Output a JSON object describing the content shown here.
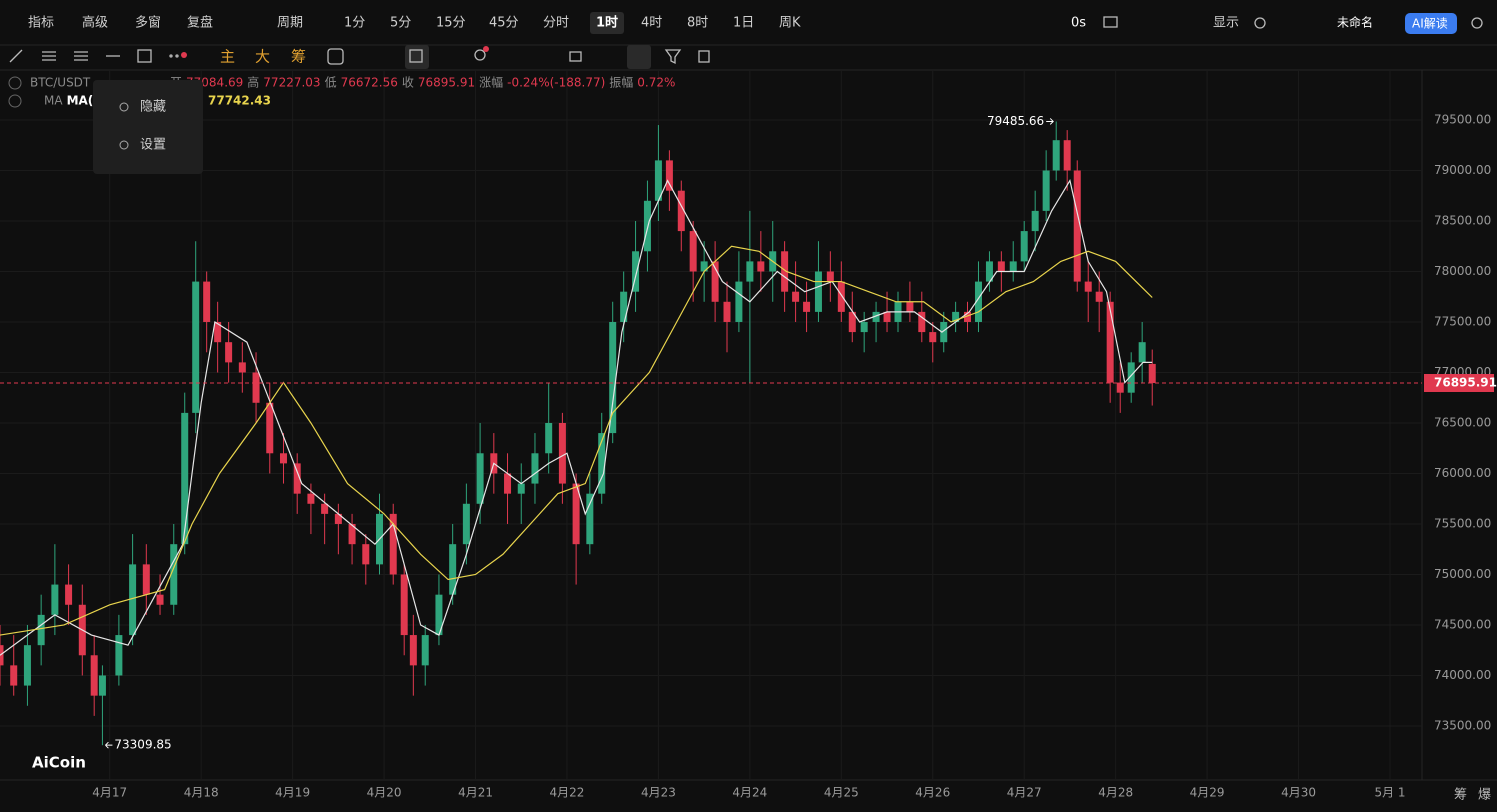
{
  "toolbar": {
    "left": [
      "指标",
      "高级",
      "多窗",
      "复盘"
    ],
    "period": "周期",
    "intervals": [
      "1分",
      "5分",
      "15分",
      "45分",
      "分时",
      "1时",
      "4时",
      "8时",
      "1日",
      "周K"
    ],
    "active_interval": 5,
    "timer": "0s",
    "display": "显示",
    "layout_name": "未命名",
    "ai": "AI解读"
  },
  "tools": {
    "main": "主",
    "big": "大",
    "chip": "筹"
  },
  "info": {
    "symbol": "BTC/USDT",
    "open": "开",
    "high": "高",
    "low": "低",
    "close": "收",
    "change_label": "涨幅",
    "change": "-0.24%(-188.77)",
    "amplitude_label": "振幅",
    "amplitude": "0.72%",
    "ma_label": "MA",
    "ma_bold": "MA("
  },
  "menu": [
    "隐藏",
    "设置"
  ],
  "logo": "AiCoin",
  "corner": [
    "筹",
    "爆"
  ],
  "chart_data": {
    "type": "candlestick",
    "xlim": [
      -1.2,
      14.35
    ],
    "ylim": [
      72965,
      79995
    ],
    "xticks": [
      {
        "value": 0,
        "label": "4月17"
      },
      {
        "value": 1,
        "label": "4月18"
      },
      {
        "value": 2,
        "label": "4月19"
      },
      {
        "value": 3,
        "label": "4月20"
      },
      {
        "value": 4,
        "label": "4月21"
      },
      {
        "value": 5,
        "label": "4月22"
      },
      {
        "value": 6,
        "label": "4月23"
      },
      {
        "value": 7,
        "label": "4月24"
      },
      {
        "value": 8,
        "label": "4月25"
      },
      {
        "value": 9,
        "label": "4月26"
      },
      {
        "value": 10,
        "label": "4月27"
      },
      {
        "value": 11,
        "label": "4月28"
      },
      {
        "value": 12,
        "label": "4月29"
      },
      {
        "value": 13,
        "label": "4月30"
      },
      {
        "value": 14,
        "label": "5月 1"
      }
    ],
    "yticks": [
      {
        "value": 73500,
        "label": "73500.00"
      },
      {
        "value": 74000,
        "label": "74000.00"
      },
      {
        "value": 74500,
        "label": "74500.00"
      },
      {
        "value": 75000,
        "label": "75000.00"
      },
      {
        "value": 75500,
        "label": "75500.00"
      },
      {
        "value": 76000,
        "label": "76000.00"
      },
      {
        "value": 76500,
        "label": "76500.00"
      },
      {
        "value": 77000,
        "label": "77000.00"
      },
      {
        "value": 77500,
        "label": "77500.00"
      },
      {
        "value": 78000,
        "label": "78000.00"
      },
      {
        "value": 78500,
        "label": "78500.00"
      },
      {
        "value": 79000,
        "label": "79000.00"
      },
      {
        "value": 79500,
        "label": "79500.00"
      }
    ],
    "grid": true,
    "up_color": "#2fa57c",
    "down_color": "#e0394f",
    "candles": [
      [
        -1.2,
        74300,
        74500,
        73900,
        74100
      ],
      [
        -1.05,
        74100,
        74400,
        73800,
        73900
      ],
      [
        -0.9,
        73900,
        74500,
        73700,
        74300
      ],
      [
        -0.75,
        74300,
        74800,
        74100,
        74600
      ],
      [
        -0.6,
        74600,
        75300,
        74400,
        74900
      ],
      [
        -0.45,
        74900,
        75100,
        74500,
        74700
      ],
      [
        -0.3,
        74700,
        74900,
        74000,
        74200
      ],
      [
        -0.17,
        74200,
        74400,
        73600,
        73800
      ],
      [
        -0.08,
        73800,
        74100,
        73309.85,
        74000
      ],
      [
        0.1,
        74000,
        74600,
        73900,
        74400
      ],
      [
        0.25,
        74400,
        75400,
        74300,
        75100
      ],
      [
        0.4,
        75100,
        75300,
        74600,
        74800
      ],
      [
        0.55,
        74800,
        75000,
        74600,
        74700
      ],
      [
        0.7,
        74700,
        75500,
        74600,
        75300
      ],
      [
        0.82,
        75300,
        76800,
        75200,
        76600
      ],
      [
        0.94,
        76600,
        78300,
        76400,
        77900
      ],
      [
        1.06,
        77900,
        78000,
        77200,
        77500
      ],
      [
        1.18,
        77500,
        77700,
        77000,
        77300
      ],
      [
        1.3,
        77300,
        77500,
        76900,
        77100
      ],
      [
        1.45,
        77100,
        77300,
        76800,
        77000
      ],
      [
        1.6,
        77000,
        77200,
        76500,
        76700
      ],
      [
        1.75,
        76700,
        76900,
        76000,
        76200
      ],
      [
        1.9,
        76200,
        76400,
        75900,
        76100
      ],
      [
        2.05,
        76100,
        76200,
        75600,
        75800
      ],
      [
        2.2,
        75800,
        75900,
        75400,
        75700
      ],
      [
        2.35,
        75700,
        75800,
        75300,
        75600
      ],
      [
        2.5,
        75600,
        75700,
        75200,
        75500
      ],
      [
        2.65,
        75500,
        75600,
        75100,
        75300
      ],
      [
        2.8,
        75300,
        75400,
        74900,
        75100
      ],
      [
        2.95,
        75100,
        75800,
        75000,
        75600
      ],
      [
        3.1,
        75600,
        75700,
        74900,
        75000
      ],
      [
        3.22,
        75000,
        75100,
        74200,
        74400
      ],
      [
        3.32,
        74400,
        74600,
        73800,
        74100
      ],
      [
        3.45,
        74100,
        74500,
        73900,
        74400
      ],
      [
        3.6,
        74400,
        75000,
        74300,
        74800
      ],
      [
        3.75,
        74800,
        75500,
        74700,
        75300
      ],
      [
        3.9,
        75300,
        75900,
        75100,
        75700
      ],
      [
        4.05,
        75700,
        76500,
        75500,
        76200
      ],
      [
        4.2,
        76200,
        76400,
        75800,
        76000
      ],
      [
        4.35,
        76000,
        76200,
        75500,
        75800
      ],
      [
        4.5,
        75800,
        76100,
        75500,
        75900
      ],
      [
        4.65,
        75900,
        76400,
        75700,
        76200
      ],
      [
        4.8,
        76200,
        76900,
        76000,
        76500
      ],
      [
        4.95,
        76500,
        76600,
        75700,
        75900
      ],
      [
        5.1,
        75900,
        76000,
        74900,
        75300
      ],
      [
        5.25,
        75300,
        76000,
        75200,
        75800
      ],
      [
        5.38,
        75800,
        76600,
        75700,
        76400
      ],
      [
        5.5,
        76400,
        77700,
        76300,
        77500
      ],
      [
        5.62,
        77500,
        78000,
        77300,
        77800
      ],
      [
        5.75,
        77800,
        78500,
        77600,
        78200
      ],
      [
        5.88,
        78200,
        78900,
        78000,
        78700
      ],
      [
        6.0,
        78700,
        79450,
        78500,
        79100
      ],
      [
        6.12,
        79100,
        79200,
        78600,
        78800
      ],
      [
        6.25,
        78800,
        78900,
        78200,
        78400
      ],
      [
        6.38,
        78400,
        78500,
        77700,
        78000
      ],
      [
        6.5,
        78000,
        78300,
        77700,
        78100
      ],
      [
        6.62,
        78100,
        78300,
        77500,
        77700
      ],
      [
        6.75,
        77700,
        77900,
        77200,
        77500
      ],
      [
        6.88,
        77500,
        78200,
        77400,
        77900
      ],
      [
        7.0,
        77900,
        78600,
        76900,
        78100
      ],
      [
        7.12,
        78100,
        78400,
        77800,
        78000
      ],
      [
        7.25,
        78000,
        78500,
        77700,
        78200
      ],
      [
        7.38,
        78200,
        78300,
        77600,
        77800
      ],
      [
        7.5,
        77800,
        78100,
        77500,
        77700
      ],
      [
        7.62,
        77700,
        77900,
        77400,
        77600
      ],
      [
        7.75,
        77600,
        78300,
        77500,
        78000
      ],
      [
        7.88,
        78000,
        78200,
        77700,
        77900
      ],
      [
        8.0,
        77900,
        78100,
        77500,
        77600
      ],
      [
        8.12,
        77600,
        77800,
        77300,
        77400
      ],
      [
        8.25,
        77400,
        77600,
        77200,
        77500
      ],
      [
        8.38,
        77500,
        77700,
        77300,
        77600
      ],
      [
        8.5,
        77600,
        77800,
        77400,
        77500
      ],
      [
        8.62,
        77500,
        77800,
        77400,
        77700
      ],
      [
        8.75,
        77700,
        77900,
        77500,
        77600
      ],
      [
        8.88,
        77600,
        77800,
        77300,
        77400
      ],
      [
        9.0,
        77400,
        77500,
        77100,
        77300
      ],
      [
        9.12,
        77300,
        77600,
        77200,
        77500
      ],
      [
        9.25,
        77500,
        77700,
        77400,
        77600
      ],
      [
        9.38,
        77600,
        77700,
        77400,
        77500
      ],
      [
        9.5,
        77500,
        78100,
        77400,
        77900
      ],
      [
        9.62,
        77900,
        78200,
        77800,
        78100
      ],
      [
        9.75,
        78100,
        78200,
        77800,
        78000
      ],
      [
        9.88,
        78000,
        78300,
        77900,
        78100
      ],
      [
        10.0,
        78100,
        78500,
        78000,
        78400
      ],
      [
        10.12,
        78400,
        78800,
        78200,
        78600
      ],
      [
        10.24,
        78600,
        79200,
        78500,
        79000
      ],
      [
        10.35,
        79000,
        79485.66,
        78900,
        79300
      ],
      [
        10.47,
        79300,
        79400,
        78800,
        79000
      ],
      [
        10.58,
        79000,
        79100,
        77800,
        77900
      ],
      [
        10.7,
        77900,
        78100,
        77500,
        77800
      ],
      [
        10.82,
        77800,
        78000,
        77400,
        77700
      ],
      [
        10.94,
        77700,
        77800,
        76700,
        76900
      ],
      [
        11.05,
        76900,
        77100,
        76600,
        76800
      ],
      [
        11.17,
        76800,
        77200,
        76700,
        77100
      ],
      [
        11.29,
        77100,
        77500,
        76900,
        77300
      ],
      [
        11.4,
        77084.69,
        77227.03,
        76672.56,
        76895.91
      ]
    ],
    "series": [
      {
        "color": "#e6e6e6",
        "x": [
          -1.2,
          -0.6,
          -0.2,
          0.2,
          0.5,
          0.8,
          1.0,
          1.15,
          1.5,
          1.8,
          2.1,
          2.5,
          2.9,
          3.1,
          3.4,
          3.6,
          3.9,
          4.2,
          4.5,
          4.8,
          5.0,
          5.2,
          5.4,
          5.6,
          5.9,
          6.1,
          6.4,
          6.7,
          7.0,
          7.3,
          7.6,
          7.9,
          8.2,
          8.5,
          8.8,
          9.1,
          9.4,
          9.7,
          10.0,
          10.3,
          10.5,
          10.7,
          10.9,
          11.1,
          11.3,
          11.4
        ],
        "values": [
          74200,
          74600,
          74400,
          74300,
          74800,
          75300,
          76700,
          77500,
          77300,
          76600,
          75900,
          75600,
          75300,
          75500,
          74500,
          74400,
          75200,
          76100,
          75900,
          76100,
          76200,
          75600,
          76000,
          77400,
          78500,
          78900,
          78400,
          77900,
          77700,
          78000,
          77800,
          77900,
          77500,
          77600,
          77600,
          77400,
          77600,
          78000,
          78000,
          78600,
          78900,
          78100,
          77800,
          76900,
          77100,
          77100
        ]
      },
      {
        "color": "#e8d44d",
        "x": [
          -1.2,
          -0.5,
          0.0,
          0.6,
          0.9,
          1.2,
          1.6,
          1.9,
          2.2,
          2.6,
          3.0,
          3.4,
          3.7,
          4.0,
          4.3,
          4.6,
          4.9,
          5.2,
          5.5,
          5.9,
          6.2,
          6.5,
          6.8,
          7.1,
          7.4,
          7.7,
          8.0,
          8.3,
          8.6,
          8.9,
          9.2,
          9.5,
          9.8,
          10.1,
          10.4,
          10.7,
          11.0,
          11.4
        ],
        "values": [
          74400,
          74500,
          74700,
          74850,
          75500,
          76000,
          76500,
          76900,
          76500,
          75900,
          75600,
          75200,
          74950,
          75000,
          75200,
          75500,
          75800,
          75900,
          76600,
          77000,
          77500,
          78000,
          78250,
          78200,
          78000,
          77900,
          77900,
          77800,
          77700,
          77700,
          77500,
          77600,
          77800,
          77900,
          78100,
          78200,
          78100,
          77742.43
        ]
      }
    ]
  }
}
